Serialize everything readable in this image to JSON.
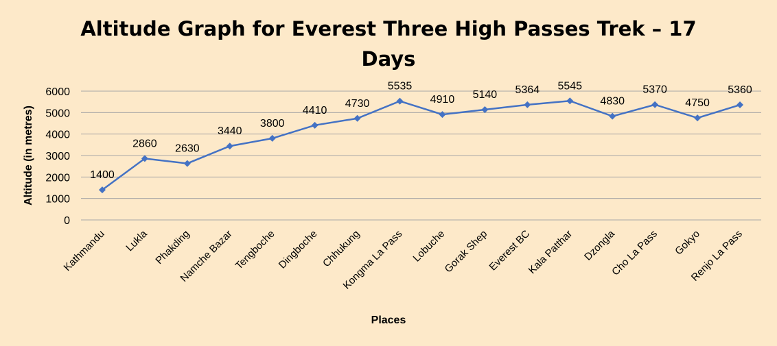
{
  "chart_data": {
    "type": "line",
    "title_line1": "Altitude Graph for Everest Three High Passes Trek – 17",
    "title_line2": "Days",
    "xlabel": "Places",
    "ylabel": "Altitude (in metres)",
    "ylim": [
      0,
      6000
    ],
    "yticks": [
      "0",
      "1000",
      "2000",
      "3000",
      "4000",
      "5000",
      "6000"
    ],
    "grid": true,
    "legend": "none",
    "colors": {
      "line": "#4472c4",
      "grid": "#a6a6a6",
      "background": "#fde9c9"
    },
    "categories": [
      "Kathmandu",
      "Lukla",
      "Phakding",
      "Namche Bazar",
      "Tengboche",
      "Dingboche",
      "Chhukung",
      "Kongma La Pass",
      "Lobuche",
      "Gorak Shep",
      "Everest BC",
      "Kala Patthar",
      "Dzongla",
      "Cho La Pass",
      "Gokyo",
      "Renjo La Pass"
    ],
    "values": [
      1400,
      2860,
      2630,
      3440,
      3800,
      4410,
      4730,
      5535,
      4910,
      5140,
      5364,
      5545,
      4830,
      5370,
      4750,
      5360
    ]
  }
}
